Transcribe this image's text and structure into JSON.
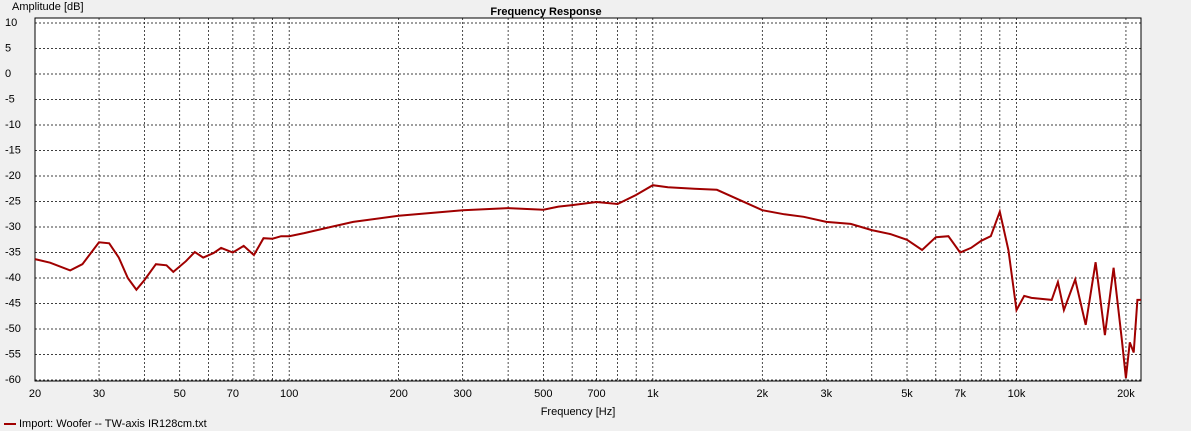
{
  "chart_data": {
    "type": "line",
    "title": "Frequency Response",
    "x_label": "Frequency [Hz]",
    "y_label": "Amplitude [dB]",
    "x_scale": "log",
    "grid": true,
    "legend": "bottom-left",
    "xlim": [
      20,
      22000
    ],
    "ylim": [
      -60,
      10
    ],
    "xticks": [
      20,
      30,
      50,
      70,
      100,
      200,
      300,
      500,
      700,
      {
        "value": 1000,
        "label": "1k"
      },
      {
        "value": 2000,
        "label": "2k"
      },
      {
        "value": 3000,
        "label": "3k"
      },
      {
        "value": 5000,
        "label": "5k"
      },
      {
        "value": 7000,
        "label": "7k"
      },
      {
        "value": 10000,
        "label": "10k"
      },
      {
        "value": 20000,
        "label": "20k"
      }
    ],
    "xminor": [
      40,
      60,
      80,
      90,
      400,
      600,
      800,
      900,
      4000,
      6000,
      8000,
      9000
    ],
    "yticks": [
      10,
      5,
      0,
      -5,
      -10,
      -15,
      -20,
      -25,
      -30,
      -35,
      -40,
      -45,
      -50,
      -55,
      -60
    ],
    "series": [
      {
        "name": "Import: Woofer -- TW-axis IR128cm.txt",
        "color": "#a00000",
        "x": [
          20,
          22,
          25,
          27,
          30,
          32,
          34,
          36,
          38,
          40,
          43,
          46,
          48,
          52,
          55,
          58,
          62,
          65,
          70,
          75,
          80,
          85,
          90,
          95,
          100,
          110,
          130,
          150,
          200,
          300,
          400,
          500,
          550,
          600,
          700,
          800,
          900,
          1000,
          1100,
          1300,
          1500,
          2000,
          2300,
          2600,
          3000,
          3500,
          4000,
          4500,
          5000,
          5500,
          6000,
          6500,
          7000,
          7500,
          8000,
          8500,
          9000,
          9500,
          10000,
          10500,
          11000,
          12500,
          13000,
          13500,
          14500,
          15500,
          16500,
          17500,
          18500,
          19500,
          20000,
          20500,
          21000,
          21500,
          22000
        ],
        "values": [
          -36.3,
          -37,
          -38.5,
          -37.3,
          -33,
          -33.2,
          -36,
          -40,
          -42.3,
          -40.4,
          -37.3,
          -37.5,
          -38.8,
          -36.7,
          -34.9,
          -36,
          -35.1,
          -34.1,
          -35,
          -33.7,
          -35.5,
          -32.2,
          -32.3,
          -31.8,
          -31.8,
          -31.2,
          -30,
          -29,
          -27.8,
          -26.7,
          -26.3,
          -26.6,
          -26,
          -25.7,
          -25.1,
          -25.5,
          -23.7,
          -21.8,
          -22.2,
          -22.5,
          -22.7,
          -26.7,
          -27.5,
          -28,
          -29,
          -29.4,
          -30.6,
          -31.4,
          -32.5,
          -34.5,
          -32,
          -31.8,
          -35,
          -34.1,
          -32.7,
          -31.8,
          -27,
          -34.5,
          -46.3,
          -43.5,
          -43.9,
          -44.3,
          -40.8,
          -46.3,
          -40.3,
          -49.2,
          -36.9,
          -51.2,
          -38,
          -52.2,
          -59.6,
          -52.6,
          -54.6,
          -44.3,
          -44.3
        ]
      }
    ]
  }
}
